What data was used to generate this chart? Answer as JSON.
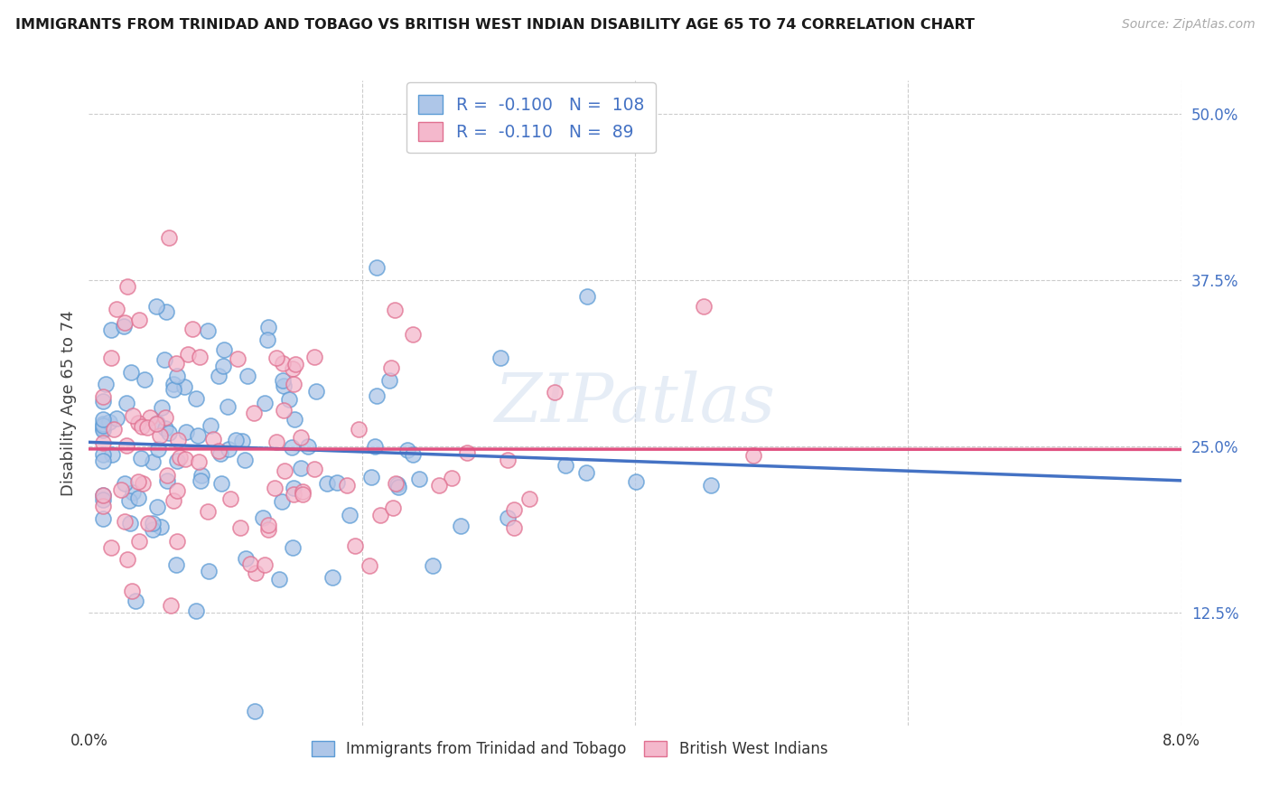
{
  "title": "IMMIGRANTS FROM TRINIDAD AND TOBAGO VS BRITISH WEST INDIAN DISABILITY AGE 65 TO 74 CORRELATION CHART",
  "source": "Source: ZipAtlas.com",
  "ylabel": "Disability Age 65 to 74",
  "xmin": 0.0,
  "xmax": 0.08,
  "ymin": 0.04,
  "ymax": 0.525,
  "R_blue": -0.1,
  "N_blue": 108,
  "R_pink": -0.11,
  "N_pink": 89,
  "legend_label_blue": "Immigrants from Trinidad and Tobago",
  "legend_label_pink": "British West Indians",
  "color_blue_face": "#aec6e8",
  "color_blue_edge": "#5b9bd5",
  "color_pink_face": "#f4b8cc",
  "color_pink_edge": "#e07090",
  "trendline_blue": "#4472c4",
  "trendline_pink": "#e05080",
  "title_color": "#1a1a1a",
  "source_color": "#aaaaaa",
  "right_axis_color": "#4472c4",
  "grid_color": "#cccccc",
  "ylabel_color": "#444444",
  "xtick_color": "#333333",
  "legend_r_color": "#4472c4",
  "legend_n_color": "#4472c4",
  "ytick_positions": [
    0.125,
    0.25,
    0.375,
    0.5
  ],
  "ytick_labels": [
    "12.5%",
    "25.0%",
    "37.5%",
    "50.0%"
  ],
  "xtick_positions": [
    0.0,
    0.02,
    0.04,
    0.06,
    0.08
  ],
  "xtick_labels": [
    "0.0%",
    "",
    "",
    "",
    "8.0%"
  ]
}
